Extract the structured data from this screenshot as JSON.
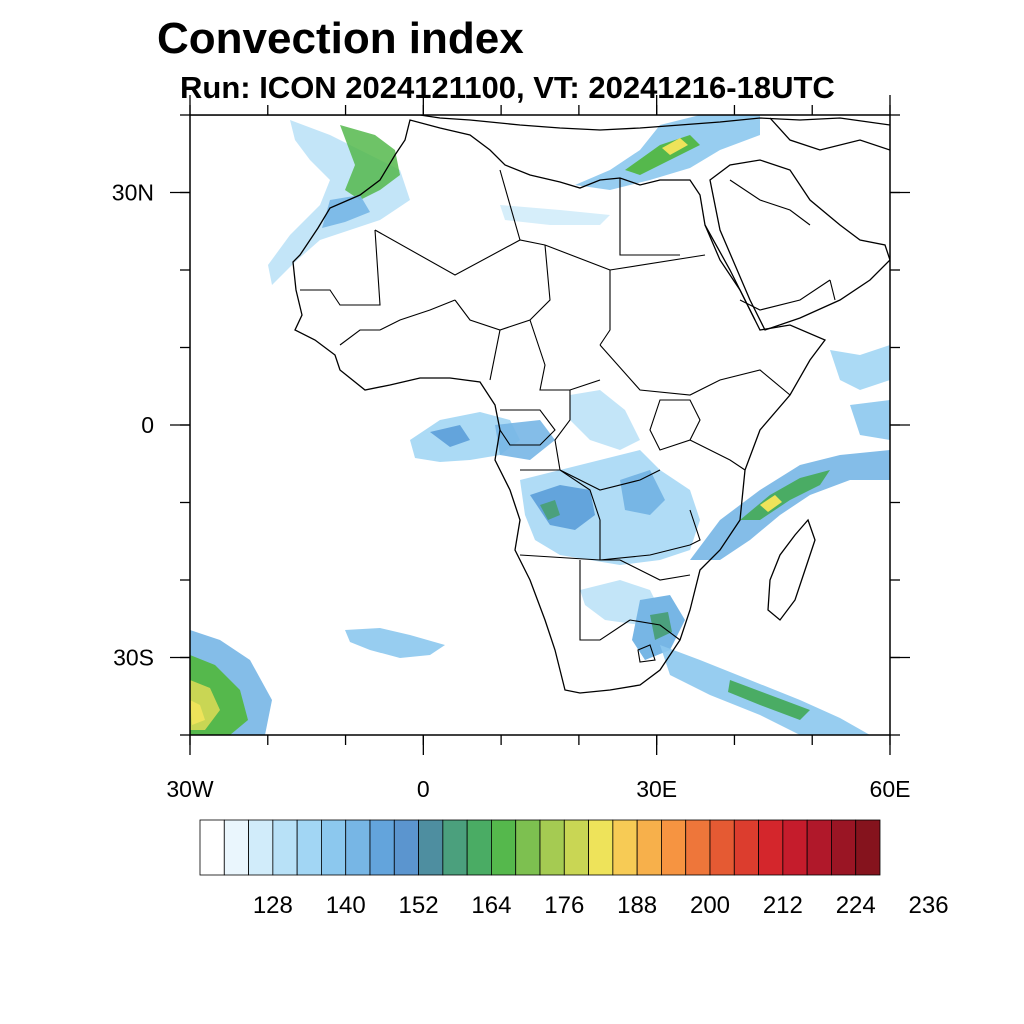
{
  "title": "Convection index",
  "subtitle": "Run: ICON 2024121100,  VT: 20241216-18UTC",
  "axes": {
    "lon_range": [
      -30,
      60
    ],
    "lat_range": [
      -40,
      40
    ],
    "x_ticks": [
      {
        "lon": -30,
        "label": "30W"
      },
      {
        "lon": 0,
        "label": "0"
      },
      {
        "lon": 30,
        "label": "30E"
      },
      {
        "lon": 60,
        "label": "60E"
      }
    ],
    "y_ticks": [
      {
        "lat": 30,
        "label": "30N"
      },
      {
        "lat": 0,
        "label": "0"
      },
      {
        "lat": -30,
        "label": "30S"
      }
    ],
    "x_minor_step": 10,
    "y_minor_step": 10
  },
  "colorbar": {
    "colors": [
      "#ffffff",
      "#eaf6fd",
      "#d1ecfa",
      "#b8e1f7",
      "#a2d6f4",
      "#8cc8ee",
      "#77b6e5",
      "#63a4dc",
      "#5b95cf",
      "#4e8ea0",
      "#4ba07d",
      "#4aac64",
      "#55b84c",
      "#7dc050",
      "#a5cb52",
      "#c9d654",
      "#eee35a",
      "#f7cb55",
      "#f7b04b",
      "#f69441",
      "#ee763a",
      "#e55a33",
      "#dc3d2e",
      "#d4262c",
      "#c51c2c",
      "#b0182a",
      "#9a1524",
      "#85131d"
    ],
    "labels": [
      "128",
      "140",
      "152",
      "164",
      "176",
      "188",
      "200",
      "212",
      "224",
      "236"
    ]
  }
}
